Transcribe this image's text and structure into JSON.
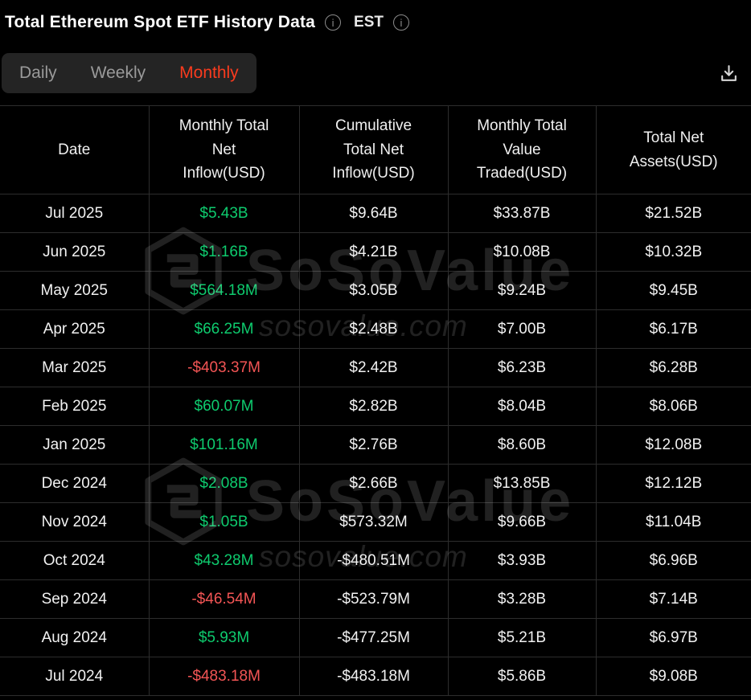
{
  "header": {
    "title": "Total Ethereum Spot ETF History Data",
    "timezone": "EST"
  },
  "icons": {
    "title_info": "info-icon",
    "timezone_info": "info-icon",
    "download": "download-icon"
  },
  "tabs": [
    {
      "label": "Daily",
      "active": false
    },
    {
      "label": "Weekly",
      "active": false
    },
    {
      "label": "Monthly",
      "active": true
    }
  ],
  "watermark": {
    "brand": "SoSoValue",
    "domain": "sosovalue.com"
  },
  "colors": {
    "positive": "#0ECB6E",
    "negative": "#F35555",
    "accent": "#FA3B1E"
  },
  "chart_data": {
    "type": "table",
    "title": "Total Ethereum Spot ETF History Data",
    "columns": [
      "Date",
      "Monthly Total Net Inflow(USD)",
      "Cumulative Total Net Inflow(USD)",
      "Monthly Total Value Traded(USD)",
      "Total Net Assets(USD)"
    ],
    "rows": [
      [
        "Jul 2025",
        "$5.43B",
        "$9.64B",
        "$33.87B",
        "$21.52B"
      ],
      [
        "Jun 2025",
        "$1.16B",
        "$4.21B",
        "$10.08B",
        "$10.32B"
      ],
      [
        "May 2025",
        "$564.18M",
        "$3.05B",
        "$9.24B",
        "$9.45B"
      ],
      [
        "Apr 2025",
        "$66.25M",
        "$2.48B",
        "$7.00B",
        "$6.17B"
      ],
      [
        "Mar 2025",
        "-$403.37M",
        "$2.42B",
        "$6.23B",
        "$6.28B"
      ],
      [
        "Feb 2025",
        "$60.07M",
        "$2.82B",
        "$8.04B",
        "$8.06B"
      ],
      [
        "Jan 2025",
        "$101.16M",
        "$2.76B",
        "$8.60B",
        "$12.08B"
      ],
      [
        "Dec 2024",
        "$2.08B",
        "$2.66B",
        "$13.85B",
        "$12.12B"
      ],
      [
        "Nov 2024",
        "$1.05B",
        "$573.32M",
        "$9.66B",
        "$11.04B"
      ],
      [
        "Oct 2024",
        "$43.28M",
        "-$480.51M",
        "$3.93B",
        "$6.96B"
      ],
      [
        "Sep 2024",
        "-$46.54M",
        "-$523.79M",
        "$3.28B",
        "$7.14B"
      ],
      [
        "Aug 2024",
        "$5.93M",
        "-$477.25M",
        "$5.21B",
        "$6.97B"
      ],
      [
        "Jul 2024",
        "-$483.18M",
        "-$483.18M",
        "$5.86B",
        "$9.08B"
      ]
    ]
  }
}
